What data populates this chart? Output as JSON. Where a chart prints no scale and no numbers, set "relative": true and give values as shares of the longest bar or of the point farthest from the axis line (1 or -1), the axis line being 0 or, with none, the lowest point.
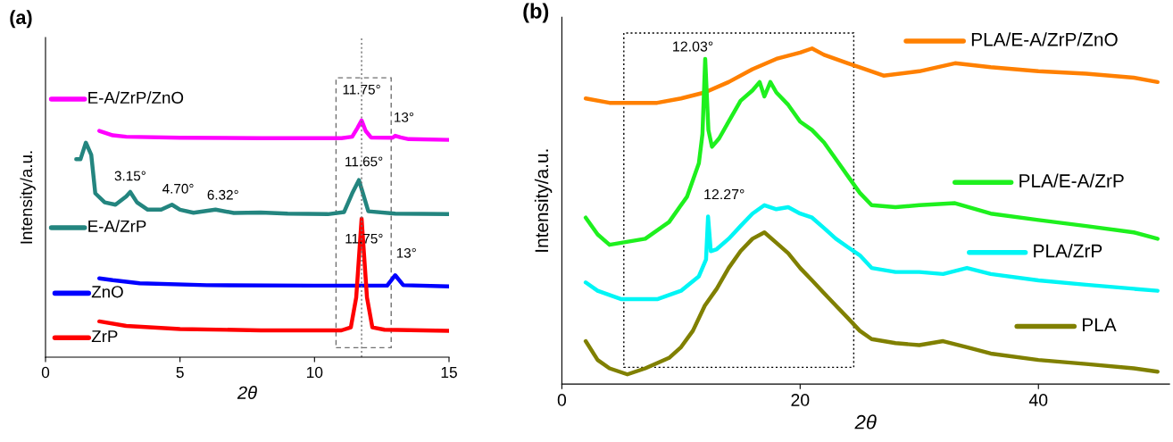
{
  "chart_data": [
    {
      "type": "line",
      "title": "(a)",
      "xlabel": "2θ",
      "ylabel": "Intensity/a.u.",
      "relative": true,
      "xlim": [
        0,
        15
      ],
      "xticks": [
        0,
        5,
        10,
        15
      ],
      "tick_labels": "x",
      "legend": "left",
      "grid": false,
      "series": [
        {
          "name": "E-A/ZrP/ZnO",
          "color": "#ff00ff",
          "x": [
            2,
            2.5,
            3,
            5,
            8,
            11,
            11.4,
            11.6,
            11.75,
            11.9,
            12.1,
            12.9,
            13,
            13.2,
            13.5,
            15
          ],
          "values": [
            0.956,
            0.937,
            0.931,
            0.927,
            0.925,
            0.925,
            0.931,
            0.969,
            1.0,
            0.956,
            0.928,
            0.927,
            0.935,
            0.928,
            0.921,
            0.918
          ]
        },
        {
          "name": "E-A/ZrP",
          "color": "#23857f",
          "x": [
            1.14,
            1.3,
            1.5,
            1.7,
            1.85,
            2.2,
            2.6,
            3.0,
            3.15,
            3.4,
            3.8,
            4.3,
            4.7,
            5.0,
            5.5,
            6.32,
            7,
            8,
            9,
            10.5,
            11.1,
            11.4,
            11.65,
            11.8,
            12.0,
            13,
            15
          ],
          "values": [
            0.836,
            0.836,
            0.906,
            0.855,
            0.692,
            0.654,
            0.644,
            0.679,
            0.698,
            0.654,
            0.623,
            0.623,
            0.644,
            0.623,
            0.61,
            0.623,
            0.609,
            0.611,
            0.606,
            0.604,
            0.613,
            0.692,
            0.748,
            0.692,
            0.616,
            0.606,
            0.604
          ]
        },
        {
          "name": "ZnO",
          "color": "#0000ff",
          "x": [
            2,
            2.5,
            3.5,
            6,
            10,
            12.7,
            13,
            13.3,
            15
          ],
          "values": [
            0.333,
            0.325,
            0.312,
            0.304,
            0.302,
            0.302,
            0.346,
            0.304,
            0.299
          ]
        },
        {
          "name": "ZrP",
          "color": "#ff0000",
          "x": [
            2,
            3,
            5,
            8,
            11,
            11.35,
            11.55,
            11.75,
            11.95,
            12.15,
            12.6,
            15
          ],
          "values": [
            0.151,
            0.132,
            0.119,
            0.113,
            0.113,
            0.126,
            0.252,
            0.585,
            0.252,
            0.126,
            0.116,
            0.111
          ]
        }
      ],
      "annotations": [
        {
          "text": "11.75°",
          "x": 11.75,
          "y": 1.0
        },
        {
          "text": "13°",
          "x": 13,
          "y": 0.935
        },
        {
          "text": "3.15°",
          "x": 3.15,
          "y": 0.698
        },
        {
          "text": "4.70°",
          "x": 4.7,
          "y": 0.644
        },
        {
          "text": "6.32°",
          "x": 6.32,
          "y": 0.623
        },
        {
          "text": "11.65°",
          "x": 11.65,
          "y": 0.748
        },
        {
          "text": "11.75°",
          "x": 11.75,
          "y": 0.585
        },
        {
          "text": "13°",
          "x": 13,
          "y": 0.346
        }
      ],
      "ref_lines": [
        {
          "axis": "x",
          "value": 11.75,
          "color": "#707070",
          "line_style": "dotted"
        }
      ]
    },
    {
      "type": "line",
      "title": "(b)",
      "xlabel": "2θ",
      "ylabel": "Intensity/a.u.",
      "relative": true,
      "xlim": [
        0,
        51
      ],
      "xticks": [
        0,
        20,
        40
      ],
      "tick_labels": "x",
      "legend": "right",
      "grid": false,
      "series": [
        {
          "name": "PLA/E-A/ZrP/ZnO",
          "color": "#ff8000",
          "x": [
            2,
            4,
            8,
            10,
            12,
            14,
            16,
            18,
            20,
            21,
            22,
            24,
            25,
            27,
            30,
            33,
            36,
            40,
            44,
            48,
            50
          ],
          "values": [
            0.851,
            0.838,
            0.838,
            0.851,
            0.869,
            0.9,
            0.938,
            0.969,
            0.988,
            1.0,
            0.981,
            0.956,
            0.944,
            0.919,
            0.932,
            0.956,
            0.944,
            0.932,
            0.925,
            0.913,
            0.9
          ]
        },
        {
          "name": "PLA/E-A/ZrP",
          "color": "#1ef01e",
          "x": [
            2,
            3,
            4,
            5,
            7,
            9,
            10.5,
            11.5,
            11.8,
            12.03,
            12.3,
            12.6,
            13.2,
            14,
            15,
            16,
            16.6,
            17,
            17.5,
            18,
            19,
            20,
            21,
            22,
            23,
            24,
            25,
            26,
            28,
            30,
            33,
            36,
            40,
            44,
            48,
            50
          ],
          "values": [
            0.496,
            0.446,
            0.415,
            0.421,
            0.433,
            0.483,
            0.558,
            0.658,
            0.745,
            0.969,
            0.757,
            0.707,
            0.732,
            0.782,
            0.844,
            0.875,
            0.9,
            0.857,
            0.9,
            0.869,
            0.832,
            0.782,
            0.757,
            0.72,
            0.67,
            0.62,
            0.57,
            0.533,
            0.527,
            0.533,
            0.539,
            0.508,
            0.489,
            0.471,
            0.452,
            0.433
          ]
        },
        {
          "name": "PLA/ZrP",
          "color": "#00f5f5",
          "x": [
            2,
            3,
            5,
            8,
            10,
            11.5,
            12.1,
            12.27,
            12.5,
            13,
            14,
            15,
            16,
            17,
            18,
            19,
            20,
            21,
            22,
            23,
            24,
            25,
            26,
            28,
            30,
            32,
            34,
            36,
            40,
            44,
            48,
            50
          ],
          "values": [
            0.303,
            0.278,
            0.253,
            0.253,
            0.278,
            0.321,
            0.371,
            0.499,
            0.396,
            0.402,
            0.433,
            0.471,
            0.508,
            0.533,
            0.521,
            0.527,
            0.508,
            0.496,
            0.465,
            0.433,
            0.408,
            0.384,
            0.346,
            0.334,
            0.334,
            0.328,
            0.346,
            0.328,
            0.309,
            0.296,
            0.284,
            0.278
          ]
        },
        {
          "name": "PLA",
          "color": "#808000",
          "x": [
            2,
            3,
            4,
            5.5,
            7,
            9,
            10,
            11,
            12,
            13,
            14,
            15,
            16,
            17,
            18,
            19,
            20,
            21,
            22,
            23,
            24,
            25,
            26,
            28,
            30,
            32,
            34,
            36,
            40,
            44,
            48,
            50
          ],
          "values": [
            0.128,
            0.072,
            0.047,
            0.029,
            0.047,
            0.078,
            0.11,
            0.159,
            0.234,
            0.284,
            0.346,
            0.396,
            0.433,
            0.452,
            0.421,
            0.39,
            0.346,
            0.309,
            0.271,
            0.234,
            0.197,
            0.159,
            0.134,
            0.122,
            0.116,
            0.128,
            0.11,
            0.091,
            0.072,
            0.06,
            0.047,
            0.037
          ]
        }
      ],
      "annotations": [
        {
          "text": "12.03°",
          "x": 12.03,
          "y": 0.969
        },
        {
          "text": "12.27°",
          "x": 12.27,
          "y": 0.499
        }
      ]
    }
  ]
}
